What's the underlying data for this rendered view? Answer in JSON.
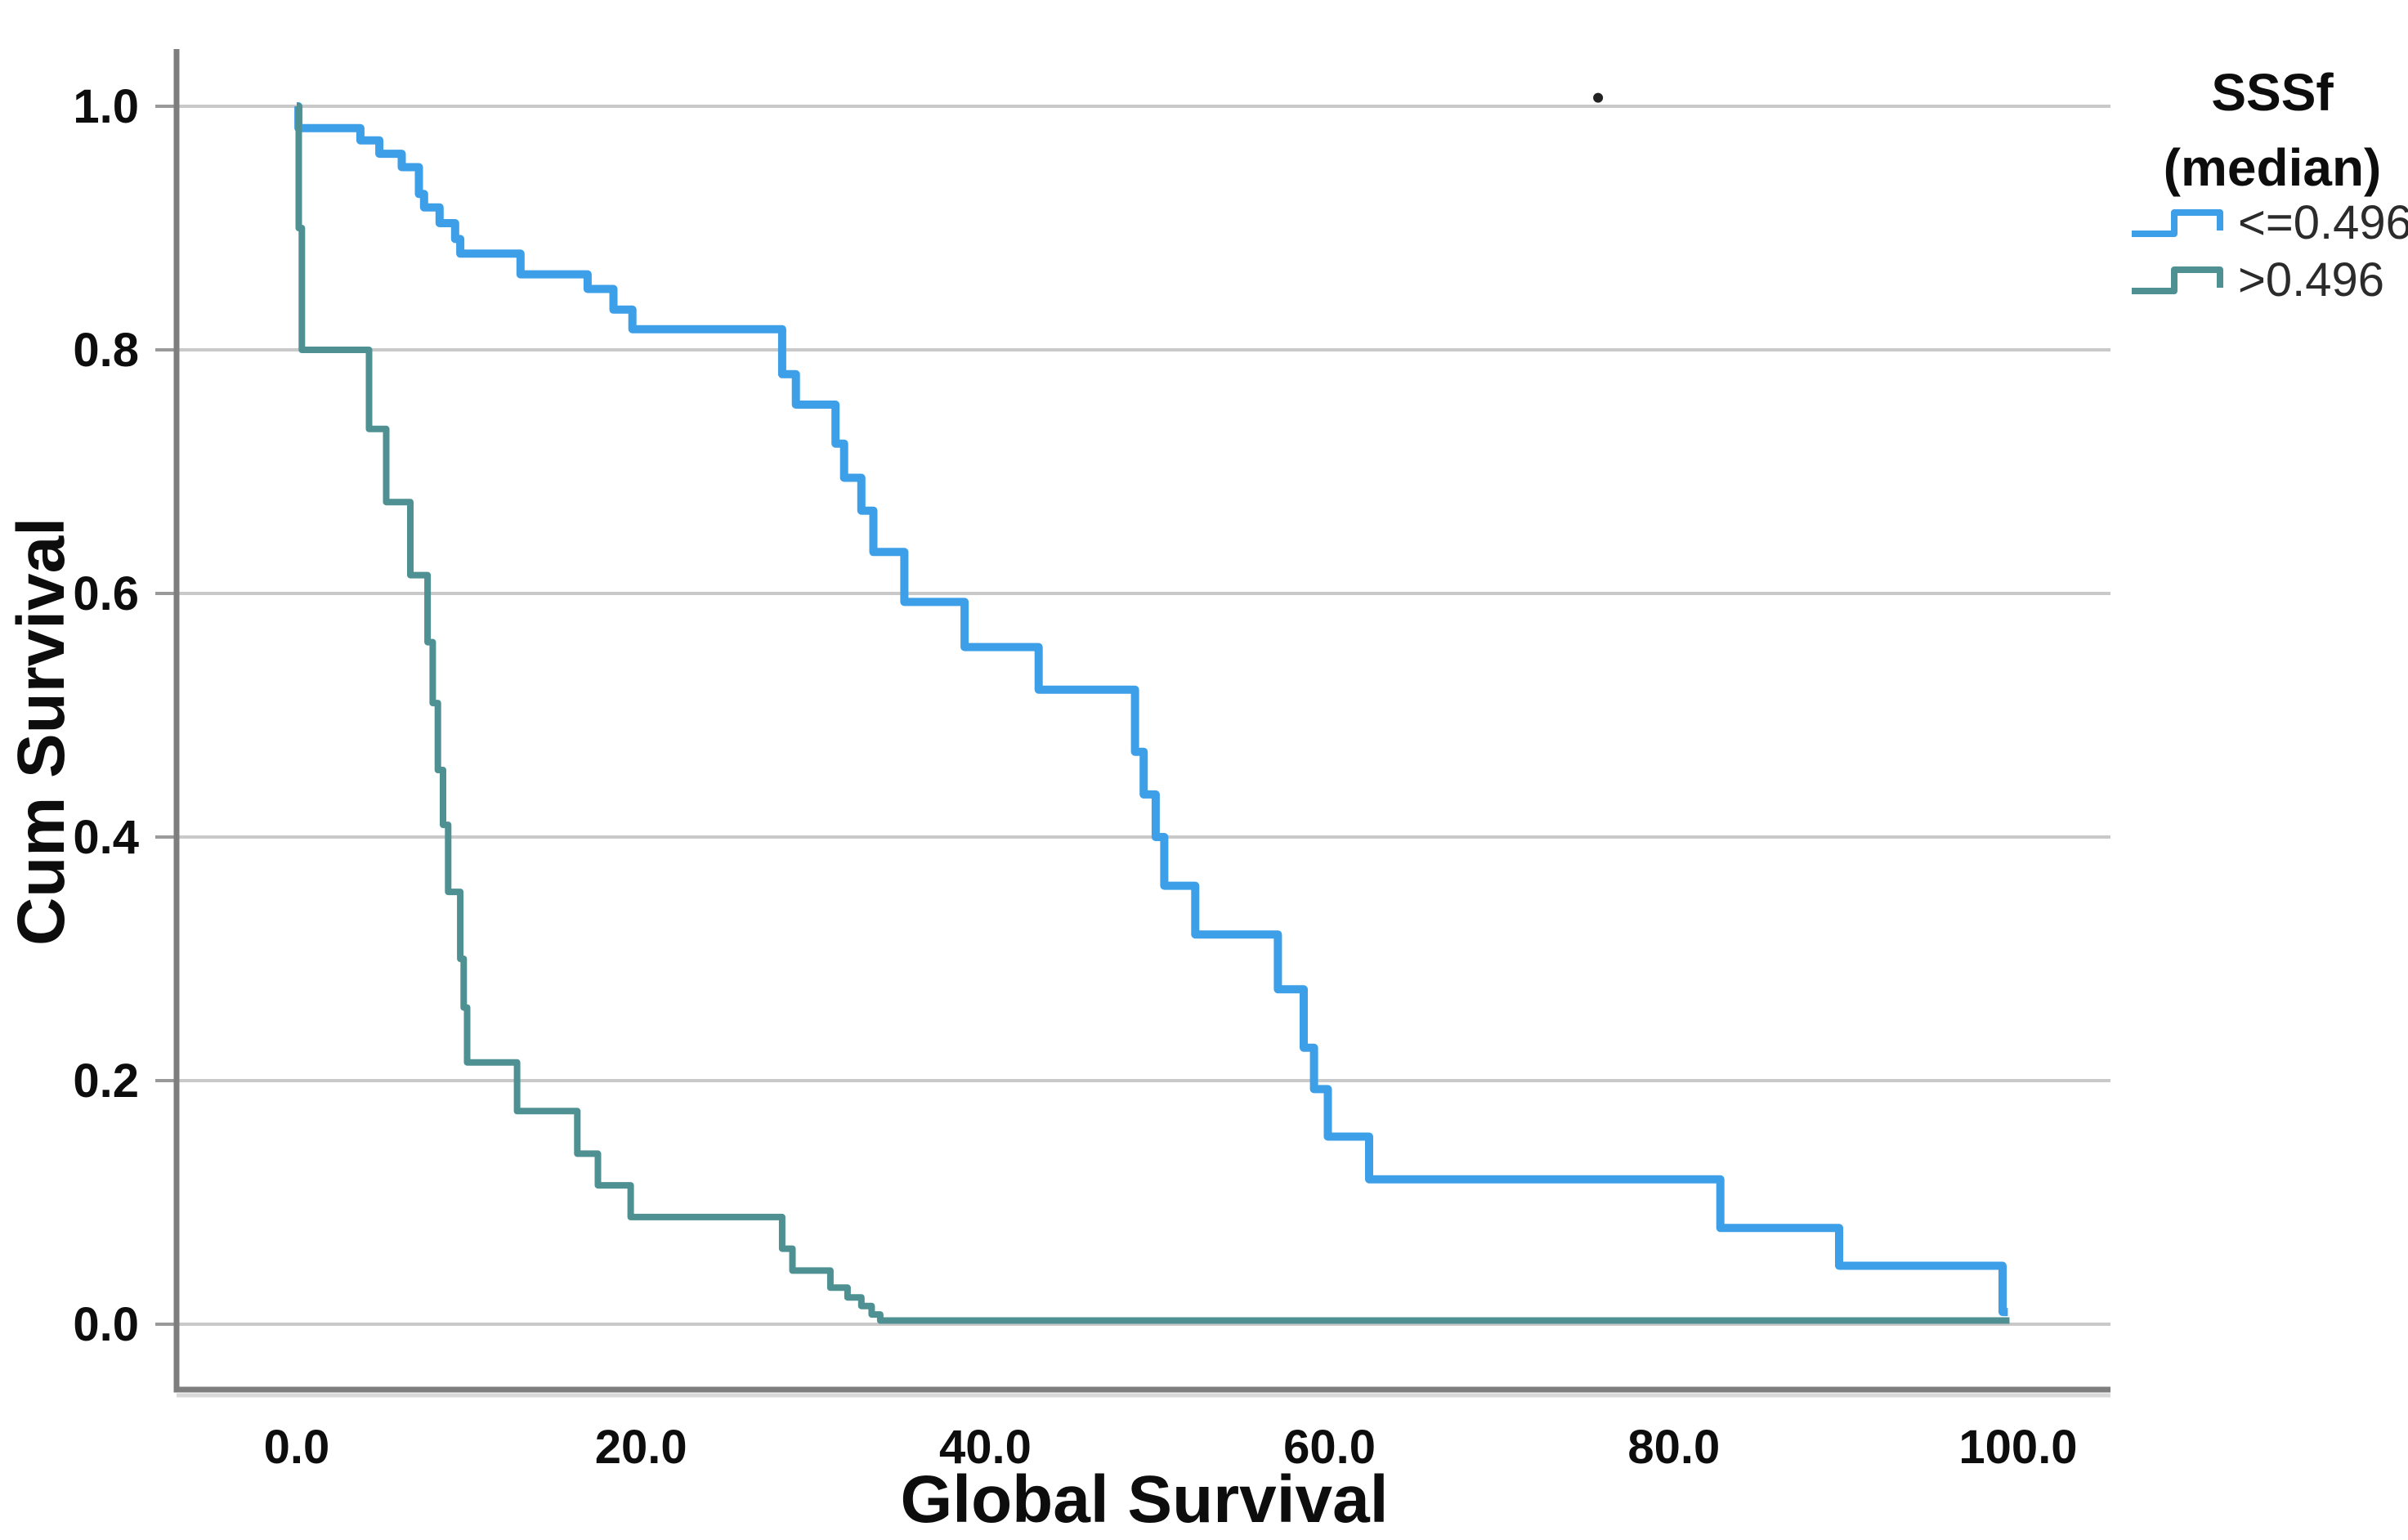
{
  "figure": {
    "kind": "kaplan-meier-survival-plot",
    "background": "#ffffff"
  },
  "colors": {
    "group1_line": "#3d9fe8",
    "group2_line": "#4f9193",
    "gridline": "#c9c9c9",
    "axis_line": "#7e7e7e",
    "text": "#0d0d0d",
    "legend_text": "#2b2b2b",
    "stray_dot": "#222222"
  },
  "axes": {
    "x": {
      "title": "Global Survival",
      "tick_labels": [
        "0.0",
        "20.0",
        "40.0",
        "60.0",
        "80.0",
        "100.0"
      ],
      "tick_values": [
        0,
        20,
        40,
        60,
        80,
        100
      ],
      "range": [
        0,
        100
      ]
    },
    "y": {
      "title": "Cum Survival",
      "tick_labels": [
        "0.0",
        "0.2",
        "0.4",
        "0.6",
        "0.8",
        "1.0"
      ],
      "tick_values": [
        0.0,
        0.2,
        0.4,
        0.6,
        0.8,
        1.0
      ],
      "range": [
        0.0,
        1.0
      ]
    }
  },
  "legend": {
    "title_line1": "SSSf",
    "title_line2": "(median)",
    "entries": [
      {
        "label": "<=0.496",
        "color": "#3d9fe8"
      },
      {
        "label": ">0.496",
        "color": "#4f9193"
      }
    ]
  },
  "annotations": {
    "stray_dot": {
      "x_data": 75.6,
      "y_value": 1.007
    }
  },
  "chart_data": {
    "type": "line",
    "subtype": "step-survival",
    "title": "",
    "xlabel": "Global Survival",
    "ylabel": "Cum Survival",
    "xlim": [
      0,
      100
    ],
    "ylim": [
      0.0,
      1.0
    ],
    "grid": "horizontal",
    "legend_position": "top-right-outside",
    "series": [
      {
        "name": "<=0.496",
        "color": "#3d9fe8",
        "stroke_width": 10,
        "end_x": 99.4,
        "points": [
          [
            0,
            1.0
          ],
          [
            0.1,
            0.982
          ],
          [
            3.7,
            0.972
          ],
          [
            4.8,
            0.961
          ],
          [
            6.1,
            0.95
          ],
          [
            7.1,
            0.928
          ],
          [
            7.4,
            0.917
          ],
          [
            8.3,
            0.904
          ],
          [
            9.2,
            0.891
          ],
          [
            9.5,
            0.879
          ],
          [
            13.0,
            0.862
          ],
          [
            16.9,
            0.85
          ],
          [
            18.4,
            0.833
          ],
          [
            19.5,
            0.817
          ],
          [
            28.2,
            0.78
          ],
          [
            29.0,
            0.755
          ],
          [
            31.3,
            0.723
          ],
          [
            31.8,
            0.695
          ],
          [
            32.8,
            0.668
          ],
          [
            33.5,
            0.634
          ],
          [
            35.3,
            0.593
          ],
          [
            38.8,
            0.556
          ],
          [
            43.1,
            0.521
          ],
          [
            48.7,
            0.47
          ],
          [
            49.2,
            0.435
          ],
          [
            49.9,
            0.4
          ],
          [
            50.4,
            0.36
          ],
          [
            52.2,
            0.32
          ],
          [
            57.0,
            0.275
          ],
          [
            58.5,
            0.227
          ],
          [
            59.1,
            0.193
          ],
          [
            59.9,
            0.154
          ],
          [
            62.3,
            0.119
          ],
          [
            82.7,
            0.079
          ],
          [
            89.6,
            0.048
          ],
          [
            99.1,
            0.01
          ]
        ]
      },
      {
        "name": ">0.496",
        "color": "#4f9193",
        "stroke_width": 8,
        "end_x": 99.5,
        "points": [
          [
            0,
            1.0
          ],
          [
            0.12,
            0.9
          ],
          [
            0.3,
            0.8
          ],
          [
            4.2,
            0.735
          ],
          [
            5.2,
            0.675
          ],
          [
            6.6,
            0.615
          ],
          [
            7.6,
            0.56
          ],
          [
            7.9,
            0.51
          ],
          [
            8.2,
            0.455
          ],
          [
            8.5,
            0.41
          ],
          [
            8.8,
            0.355
          ],
          [
            9.5,
            0.3
          ],
          [
            9.7,
            0.26
          ],
          [
            9.9,
            0.215
          ],
          [
            12.8,
            0.175
          ],
          [
            16.3,
            0.14
          ],
          [
            17.5,
            0.114
          ],
          [
            19.4,
            0.088
          ],
          [
            28.2,
            0.062
          ],
          [
            28.8,
            0.044
          ],
          [
            31.0,
            0.03
          ],
          [
            32.0,
            0.022
          ],
          [
            32.8,
            0.015
          ],
          [
            33.4,
            0.008
          ],
          [
            33.9,
            0.003
          ]
        ]
      }
    ]
  }
}
